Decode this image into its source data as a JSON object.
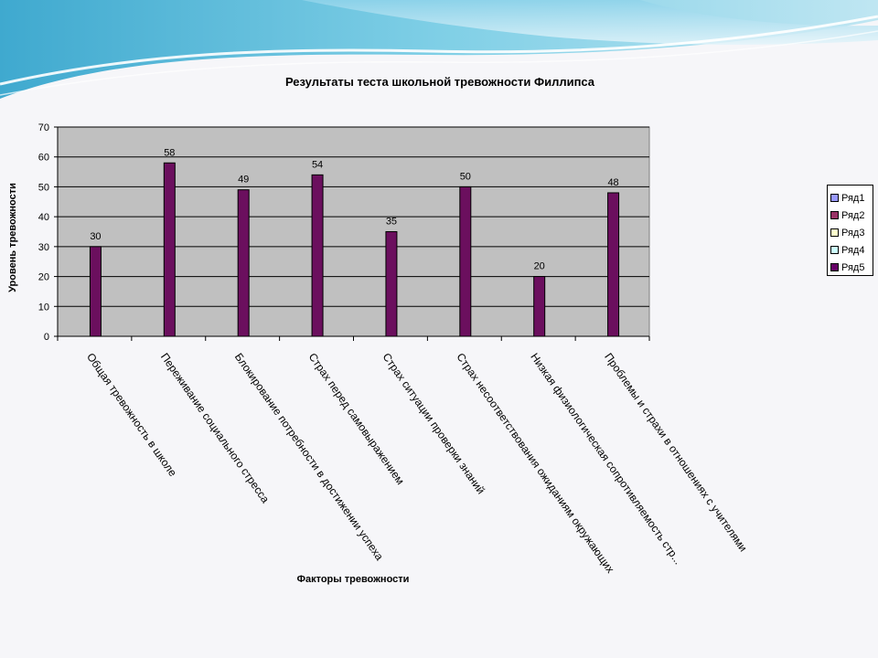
{
  "chart_data": {
    "type": "bar",
    "title": "Результаты теста школьной тревожности Филлипса",
    "xlabel": "Факторы тревожности",
    "ylabel": "Уровень тревожности",
    "ylim": [
      0,
      70
    ],
    "yticks": [
      "0",
      "10",
      "20",
      "30",
      "40",
      "50",
      "60",
      "70"
    ],
    "grid": true,
    "legend_position": "right",
    "categories": [
      "Общая тревожность  в школе",
      "Переживание социального стресса",
      "Блокирование потребности в достижении успеха",
      "Страх перед самовыражением",
      "Страх ситуации проверки знаний",
      "Страх несоответствования ожиданиям окружающих",
      "Низкая физиологическая сопротивляемость стр...",
      "Проблемы и страхи в отношениях с учителями"
    ],
    "values": [
      30,
      58,
      49,
      54,
      35,
      50,
      20,
      48
    ],
    "data_labels": [
      "30",
      "58",
      "49",
      "54",
      "35",
      "50",
      "20",
      "48"
    ],
    "series": [
      {
        "name": "Ряд5",
        "values": [
          30,
          58,
          49,
          54,
          35,
          50,
          20,
          48
        ]
      }
    ],
    "legend": [
      "Ряд1",
      "Ряд2",
      "Ряд3",
      "Ряд4",
      "Ряд5"
    ],
    "colors": {
      "bar": "#6b0f5e",
      "plot_background": "#c0c0c0",
      "gridline": "#000000",
      "legend_swatches": [
        "#9999ff",
        "#993366",
        "#ffffcc",
        "#ccffff",
        "#660066"
      ]
    }
  }
}
